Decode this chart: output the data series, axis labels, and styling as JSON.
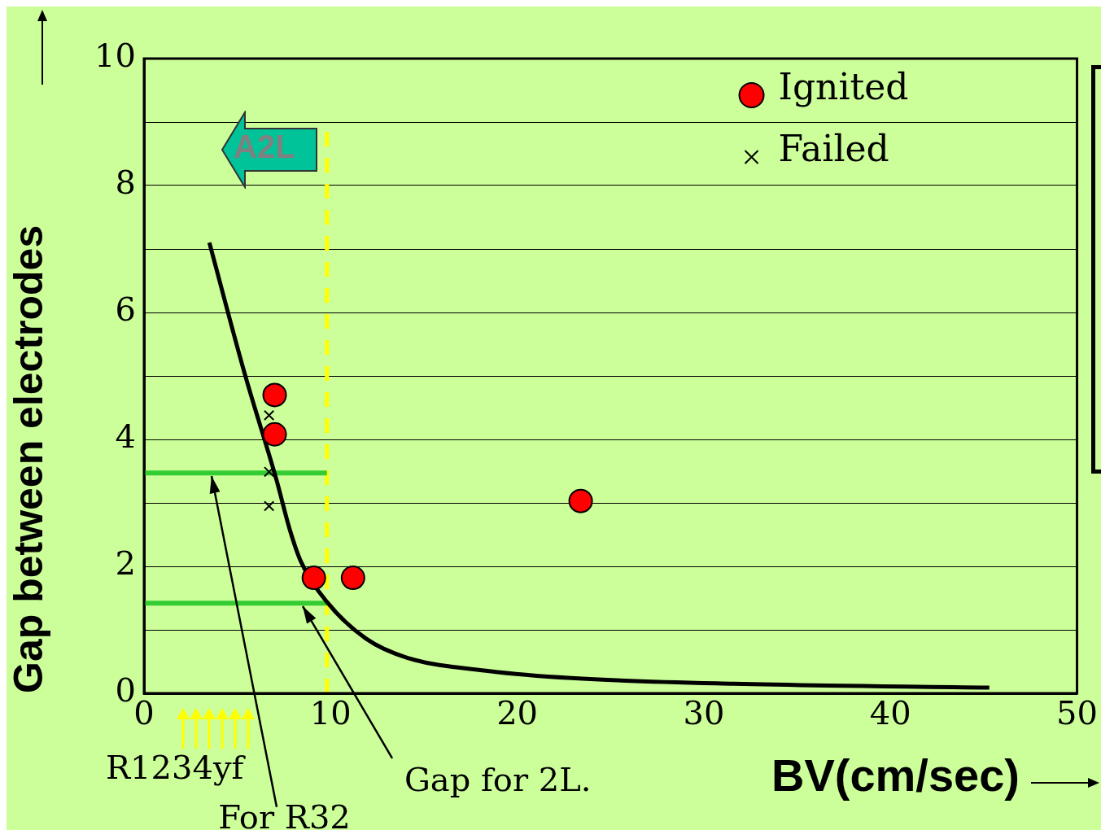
{
  "chart_data": {
    "type": "scatter",
    "xlabel": "BV(cm/sec)",
    "ylabel": "Gap between electrodes",
    "xlim": [
      0,
      50
    ],
    "xticks": [
      0,
      10,
      20,
      30,
      40,
      50
    ],
    "ylim": [
      0,
      10
    ],
    "yticks": [
      0,
      {
        "value": 1,
        "label": null
      },
      2,
      {
        "value": 3,
        "label": null
      },
      4,
      {
        "value": 5,
        "label": null
      },
      6,
      {
        "value": 7,
        "label": null
      },
      8,
      {
        "value": 9,
        "label": null
      },
      10
    ],
    "grid": "y",
    "legend": "top right",
    "series": [
      {
        "name": "Ignited",
        "type": "scatter",
        "marker": "circle",
        "color": "#ff0000",
        "x": [
          7.0,
          7.0,
          9.1,
          11.2,
          23.4
        ],
        "values": [
          4.7,
          4.08,
          1.82,
          1.82,
          3.03
        ]
      },
      {
        "name": "Failed",
        "type": "scatter",
        "marker": "cross",
        "color": "#000000",
        "x": [
          6.7,
          6.7,
          6.7
        ],
        "values": [
          4.38,
          3.49,
          2.95
        ]
      },
      {
        "type": "line",
        "marker": "none",
        "color": "#000000",
        "x": [
          3.5,
          5.4,
          7.1,
          7.8,
          8.4,
          9.8,
          11.9,
          14.1,
          18.5,
          22.9,
          31.6,
          45.3
        ],
        "values": [
          7.1,
          5.03,
          3.36,
          2.59,
          2.08,
          1.44,
          0.86,
          0.56,
          0.35,
          0.24,
          0.15,
          0.09
        ]
      },
      {
        "type": "line",
        "marker": "none",
        "color": "#33cc33",
        "x": [
          0,
          9.8
        ],
        "values": [
          3.47,
          3.47
        ]
      },
      {
        "type": "line",
        "marker": "none",
        "color": "#33cc33",
        "x": [
          0,
          9.8
        ],
        "values": [
          1.42,
          1.42
        ]
      }
    ],
    "ref_lines": [
      {
        "axis": "x",
        "value": 9.8,
        "color": "#ffff00",
        "line_style": "dashed"
      }
    ],
    "annotations": [
      "A2L",
      "R1234yf",
      {
        "text": "For R32",
        "x": 3.6,
        "y": 3.47
      },
      {
        "text": "Gap for 2L.",
        "x": 8.5,
        "y": 1.42
      }
    ]
  }
}
